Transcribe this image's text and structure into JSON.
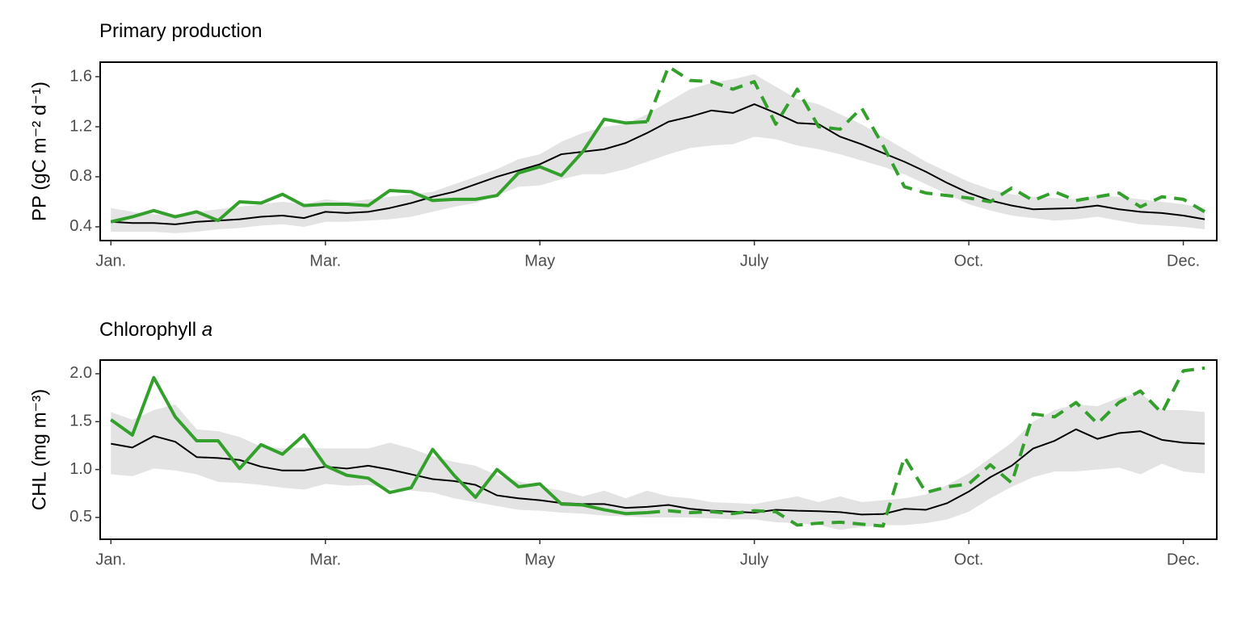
{
  "chart_data": [
    {
      "type": "line",
      "title": "Primary production",
      "ylabel": "PP (gC m⁻² d⁻¹)",
      "x": [
        0,
        1,
        2,
        3,
        4,
        5,
        6,
        7,
        8,
        9,
        10,
        11,
        12,
        13,
        14,
        15,
        16,
        17,
        18,
        19,
        20,
        21,
        22,
        23,
        24,
        25,
        26,
        27,
        28,
        29,
        30,
        31,
        32,
        33,
        34,
        35,
        36,
        37,
        38,
        39,
        40,
        41,
        42,
        43,
        44,
        45,
        46,
        47,
        48,
        49,
        50,
        51
      ],
      "xlim": [
        -0.5,
        51.56
      ],
      "xticks": [
        {
          "value": 0,
          "label": "Jan."
        },
        {
          "value": 10,
          "label": "Mar."
        },
        {
          "value": 20,
          "label": "May"
        },
        {
          "value": 30,
          "label": "July"
        },
        {
          "value": 40,
          "label": "Oct."
        },
        {
          "value": 50,
          "label": "Dec."
        }
      ],
      "ylim": [
        0.29,
        1.716
      ],
      "yticks": [
        0.4,
        0.8,
        1.2,
        1.6
      ],
      "band": {
        "color": "#e3e3e3",
        "lower": [
          0.36,
          0.36,
          0.36,
          0.35,
          0.36,
          0.38,
          0.39,
          0.41,
          0.42,
          0.4,
          0.44,
          0.44,
          0.45,
          0.46,
          0.48,
          0.52,
          0.56,
          0.59,
          0.65,
          0.72,
          0.73,
          0.78,
          0.82,
          0.82,
          0.86,
          0.92,
          0.98,
          1.03,
          1.05,
          1.06,
          1.12,
          1.1,
          1.05,
          1.02,
          0.98,
          0.93,
          0.88,
          0.82,
          0.74,
          0.66,
          0.58,
          0.53,
          0.49,
          0.47,
          0.45,
          0.46,
          0.48,
          0.45,
          0.42,
          0.41,
          0.4,
          0.38
        ],
        "upper": [
          0.55,
          0.52,
          0.5,
          0.5,
          0.52,
          0.54,
          0.56,
          0.58,
          0.6,
          0.58,
          0.62,
          0.6,
          0.62,
          0.64,
          0.66,
          0.68,
          0.74,
          0.8,
          0.86,
          0.94,
          0.98,
          1.08,
          1.15,
          1.2,
          1.22,
          1.3,
          1.4,
          1.5,
          1.55,
          1.58,
          1.62,
          1.52,
          1.42,
          1.38,
          1.3,
          1.22,
          1.12,
          1.02,
          0.92,
          0.84,
          0.76,
          0.7,
          0.66,
          0.64,
          0.63,
          0.62,
          0.65,
          0.64,
          0.62,
          0.6,
          0.58,
          0.55
        ]
      },
      "series": [
        {
          "color": "#000000",
          "linewidth": 2,
          "line_style": "solid",
          "values": [
            0.44,
            0.43,
            0.43,
            0.42,
            0.44,
            0.45,
            0.46,
            0.48,
            0.49,
            0.47,
            0.52,
            0.51,
            0.52,
            0.55,
            0.59,
            0.64,
            0.68,
            0.74,
            0.8,
            0.85,
            0.9,
            0.98,
            1.0,
            1.02,
            1.07,
            1.15,
            1.24,
            1.28,
            1.33,
            1.31,
            1.38,
            1.31,
            1.23,
            1.22,
            1.12,
            1.06,
            0.99,
            0.92,
            0.84,
            0.75,
            0.67,
            0.61,
            0.57,
            0.54,
            0.545,
            0.55,
            0.57,
            0.54,
            0.52,
            0.51,
            0.49,
            0.46
          ]
        },
        {
          "color": "#33a02c",
          "linewidth": 4,
          "line_style": "solid",
          "values": [
            0.44,
            0.48,
            0.53,
            0.48,
            0.52,
            0.45,
            0.6,
            0.59,
            0.66,
            0.57,
            0.58,
            0.58,
            0.57,
            0.69,
            0.68,
            0.61,
            0.62,
            0.62,
            0.65,
            0.83,
            0.88,
            0.81,
            1.0,
            1.26,
            1.23,
            1.24,
            null,
            null,
            null,
            null,
            null,
            null,
            null,
            null,
            null,
            null,
            null,
            null,
            null,
            null,
            null,
            null,
            null,
            null,
            null,
            null,
            null,
            null,
            null,
            null,
            null,
            null
          ]
        },
        {
          "color": "#33a02c",
          "linewidth": 4,
          "line_style": "dashed",
          "values": [
            null,
            null,
            null,
            null,
            null,
            null,
            null,
            null,
            null,
            null,
            null,
            null,
            null,
            null,
            null,
            null,
            null,
            null,
            null,
            null,
            null,
            null,
            null,
            null,
            null,
            1.24,
            1.68,
            1.57,
            1.56,
            1.5,
            1.56,
            1.22,
            1.5,
            1.2,
            1.18,
            1.35,
            1.05,
            0.72,
            0.67,
            0.65,
            0.63,
            0.6,
            0.71,
            0.61,
            0.68,
            0.61,
            0.64,
            0.67,
            0.56,
            0.64,
            0.62,
            0.52
          ]
        }
      ]
    },
    {
      "type": "line",
      "title": "Chlorophyll",
      "title_italic": "a",
      "ylabel": "CHL (mg m⁻³)",
      "x": [
        0,
        1,
        2,
        3,
        4,
        5,
        6,
        7,
        8,
        9,
        10,
        11,
        12,
        13,
        14,
        15,
        16,
        17,
        18,
        19,
        20,
        21,
        22,
        23,
        24,
        25,
        26,
        27,
        28,
        29,
        30,
        31,
        32,
        33,
        34,
        35,
        36,
        37,
        38,
        39,
        40,
        41,
        42,
        43,
        44,
        45,
        46,
        47,
        48,
        49,
        50,
        51
      ],
      "xlim": [
        -0.5,
        51.56
      ],
      "xticks": [
        {
          "value": 0,
          "label": "Jan."
        },
        {
          "value": 10,
          "label": "Mar."
        },
        {
          "value": 20,
          "label": "May"
        },
        {
          "value": 30,
          "label": "July"
        },
        {
          "value": 40,
          "label": "Oct."
        },
        {
          "value": 50,
          "label": "Dec."
        }
      ],
      "ylim": [
        0.272,
        2.143
      ],
      "yticks": [
        0.5,
        {
          "value": 1,
          "label": "1.0"
        },
        1.5,
        {
          "value": 2,
          "label": "2.0"
        }
      ],
      "band": {
        "color": "#e3e3e3",
        "lower": [
          0.95,
          0.93,
          1.01,
          0.99,
          0.95,
          0.87,
          0.86,
          0.84,
          0.81,
          0.79,
          0.85,
          0.83,
          0.84,
          0.8,
          0.78,
          0.76,
          0.7,
          0.66,
          0.62,
          0.58,
          0.57,
          0.55,
          0.54,
          0.52,
          0.51,
          0.5,
          0.5,
          0.5,
          0.49,
          0.48,
          0.48,
          0.45,
          0.44,
          0.42,
          0.37,
          0.4,
          0.42,
          0.42,
          0.44,
          0.48,
          0.56,
          0.7,
          0.82,
          0.92,
          0.98,
          0.98,
          1.0,
          1.02,
          0.95,
          1.06,
          0.98,
          0.96
        ],
        "upper": [
          1.6,
          1.52,
          1.62,
          1.68,
          1.42,
          1.4,
          1.34,
          1.24,
          1.22,
          1.23,
          1.22,
          1.22,
          1.22,
          1.28,
          1.22,
          1.14,
          1.08,
          1.04,
          0.94,
          0.88,
          0.82,
          0.78,
          0.72,
          0.78,
          0.7,
          0.78,
          0.72,
          0.7,
          0.66,
          0.65,
          0.64,
          0.68,
          0.72,
          0.66,
          0.72,
          0.66,
          0.68,
          0.7,
          0.74,
          0.84,
          0.96,
          1.12,
          1.28,
          1.5,
          1.62,
          1.68,
          1.66,
          1.75,
          1.8,
          1.62,
          1.62,
          1.6
        ]
      },
      "series": [
        {
          "color": "#000000",
          "linewidth": 2,
          "line_style": "solid",
          "values": [
            1.27,
            1.23,
            1.35,
            1.29,
            1.13,
            1.12,
            1.1,
            1.03,
            0.99,
            0.99,
            1.03,
            1.01,
            1.04,
            1.0,
            0.95,
            0.9,
            0.88,
            0.84,
            0.73,
            0.7,
            0.68,
            0.65,
            0.64,
            0.64,
            0.6,
            0.61,
            0.63,
            0.59,
            0.57,
            0.56,
            0.55,
            0.58,
            0.57,
            0.565,
            0.555,
            0.53,
            0.535,
            0.59,
            0.58,
            0.65,
            0.77,
            0.92,
            1.04,
            1.22,
            1.3,
            1.42,
            1.32,
            1.38,
            1.4,
            1.31,
            1.28,
            1.27
          ]
        },
        {
          "color": "#33a02c",
          "linewidth": 4,
          "line_style": "solid",
          "values": [
            1.52,
            1.36,
            1.96,
            1.55,
            1.3,
            1.3,
            1.01,
            1.26,
            1.16,
            1.36,
            1.04,
            0.94,
            0.91,
            0.76,
            0.81,
            1.21,
            0.94,
            0.71,
            1.0,
            0.82,
            0.85,
            0.64,
            0.63,
            0.58,
            0.54,
            0.55,
            null,
            null,
            null,
            null,
            null,
            null,
            null,
            null,
            null,
            null,
            null,
            null,
            null,
            null,
            null,
            null,
            null,
            null,
            null,
            null,
            null,
            null,
            null,
            null,
            null,
            null
          ]
        },
        {
          "color": "#33a02c",
          "linewidth": 4,
          "line_style": "dashed",
          "values": [
            null,
            null,
            null,
            null,
            null,
            null,
            null,
            null,
            null,
            null,
            null,
            null,
            null,
            null,
            null,
            null,
            null,
            null,
            null,
            null,
            null,
            null,
            null,
            null,
            null,
            0.55,
            0.57,
            0.55,
            0.56,
            0.54,
            0.57,
            0.56,
            0.42,
            0.44,
            0.45,
            0.43,
            0.41,
            1.13,
            0.76,
            0.82,
            0.85,
            1.05,
            0.86,
            1.58,
            1.55,
            1.7,
            1.48,
            1.7,
            1.82,
            1.59,
            2.03,
            2.06
          ]
        }
      ]
    }
  ]
}
